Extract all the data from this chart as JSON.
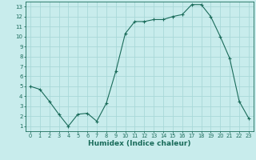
{
  "x": [
    0,
    1,
    2,
    3,
    4,
    5,
    6,
    7,
    8,
    9,
    10,
    11,
    12,
    13,
    14,
    15,
    16,
    17,
    18,
    19,
    20,
    21,
    22,
    23
  ],
  "y": [
    5.0,
    4.7,
    3.5,
    2.2,
    1.0,
    2.2,
    2.3,
    1.5,
    3.3,
    6.5,
    10.3,
    11.5,
    11.5,
    11.7,
    11.7,
    12.0,
    12.2,
    13.2,
    13.2,
    12.0,
    10.0,
    7.8,
    3.5,
    1.8
  ],
  "line_color": "#1a6b5a",
  "marker": "+",
  "background_color": "#c8ecec",
  "grid_color": "#a8d8d8",
  "xlabel": "Humidex (Indice chaleur)",
  "xlabel_fontsize": 6.5,
  "tick_color": "#1a6b5a",
  "xlim": [
    -0.5,
    23.5
  ],
  "ylim": [
    0.5,
    13.5
  ],
  "yticks": [
    1,
    2,
    3,
    4,
    5,
    6,
    7,
    8,
    9,
    10,
    11,
    12,
    13
  ],
  "xticks": [
    0,
    1,
    2,
    3,
    4,
    5,
    6,
    7,
    8,
    9,
    10,
    11,
    12,
    13,
    14,
    15,
    16,
    17,
    18,
    19,
    20,
    21,
    22,
    23
  ]
}
